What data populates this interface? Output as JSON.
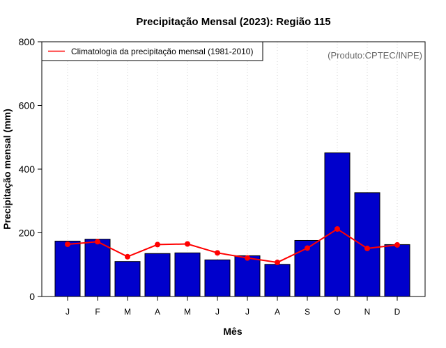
{
  "chart_data": {
    "type": "bar",
    "title": "Precipitação Mensal (2023): Região 115",
    "xlabel": "Mês",
    "ylabel": "Precipitação mensal (mm)",
    "ylim": [
      0,
      800
    ],
    "yticks": [
      0,
      200,
      400,
      600,
      800
    ],
    "categories": [
      "J",
      "F",
      "M",
      "A",
      "M",
      "J",
      "J",
      "A",
      "S",
      "O",
      "N",
      "D"
    ],
    "series": [
      {
        "name": "Precipitação mensal 2023",
        "type": "bar",
        "color": "#0000cc",
        "values": [
          174,
          180,
          110,
          135,
          137,
          115,
          128,
          101,
          176,
          451,
          326,
          163
        ]
      },
      {
        "name": "Climatologia da precipitação mensal (1981-2010)",
        "type": "line",
        "color": "#ff0000",
        "values": [
          164,
          172,
          125,
          163,
          165,
          137,
          121,
          107,
          152,
          212,
          151,
          162
        ]
      }
    ],
    "legend": {
      "position": "top-left",
      "entries": [
        "Climatologia da precipitação mensal (1981-2010)"
      ]
    },
    "grid": "vertical-dotted",
    "annotation": "(Produto:CPTEC/INPE)"
  }
}
